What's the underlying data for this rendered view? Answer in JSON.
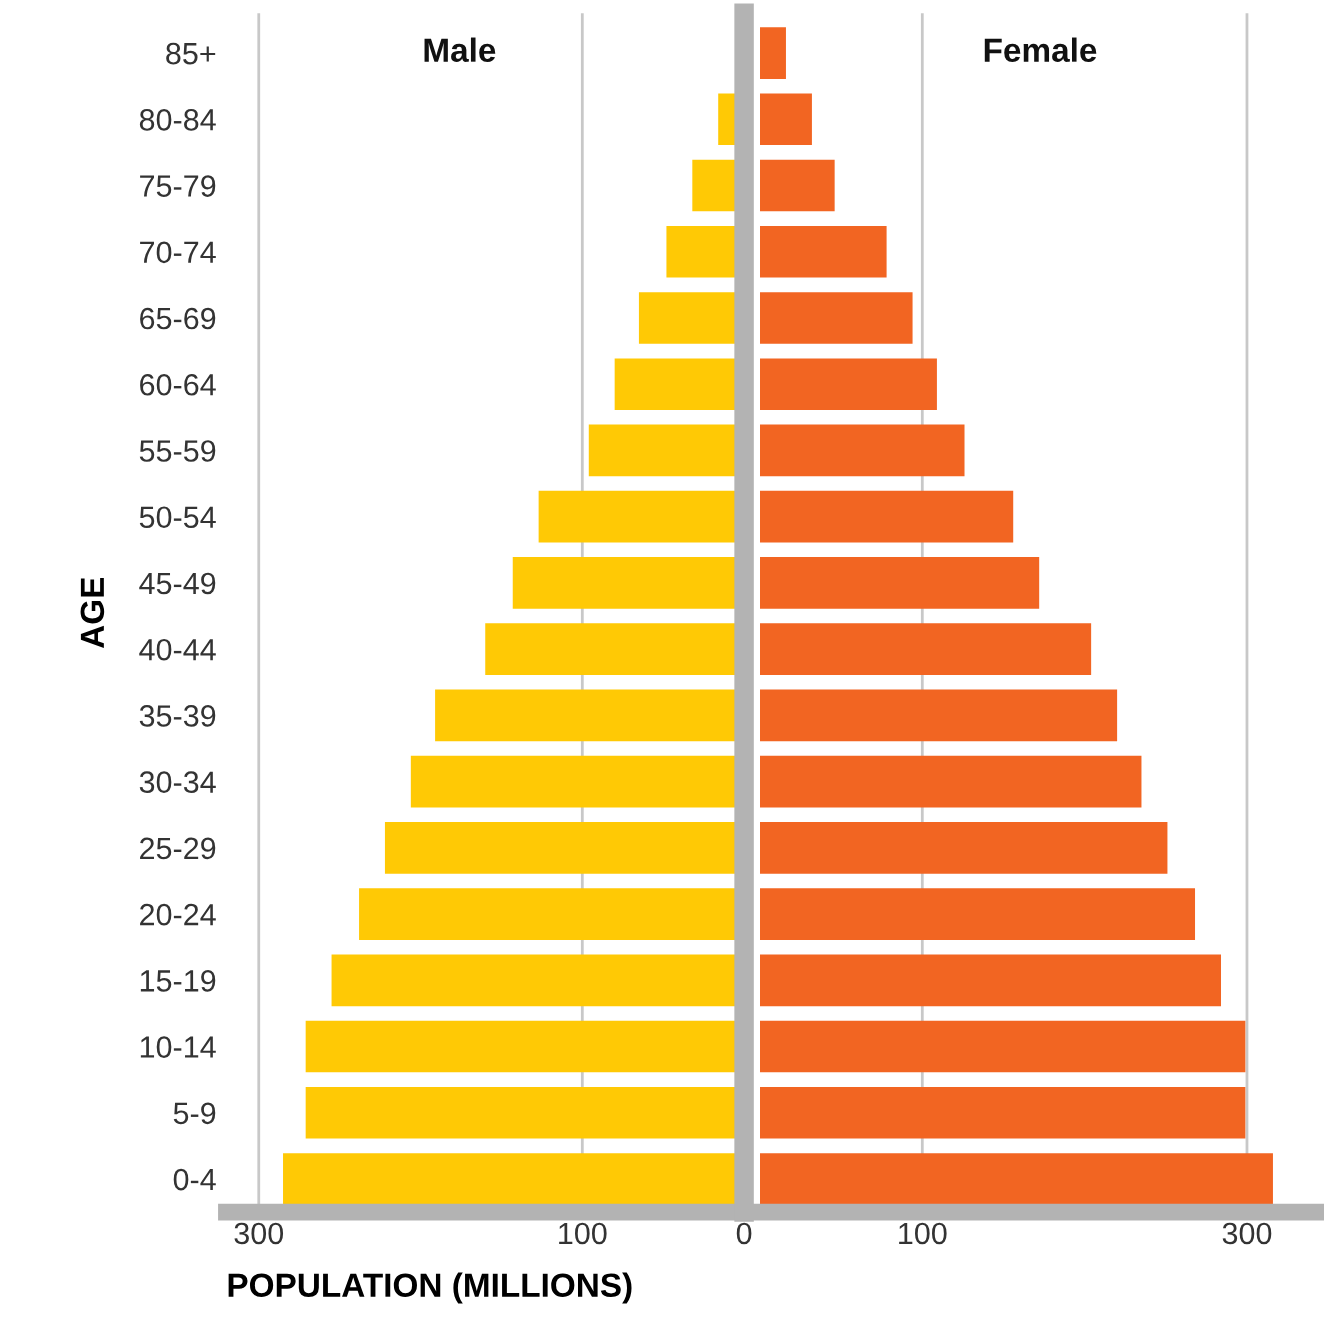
{
  "chart_data": [
    {
      "type": "bar",
      "orientation": "horizontal",
      "xlabel": "POPULATION (MILLIONS)",
      "ylabel": "AGE",
      "categories": [
        "85+",
        "80-84",
        "75-79",
        "70-74",
        "65-69",
        "60-64",
        "55-59",
        "50-54",
        "45-49",
        "40-44",
        "35-39",
        "30-34",
        "25-29",
        "20-24",
        "15-19",
        "10-14",
        "5-9",
        "0-4"
      ],
      "series": [
        {
          "name": "Male",
          "color": "#ffc905",
          "values": [
            0,
            16,
            32,
            48,
            65,
            80,
            96,
            127,
            143,
            160,
            191,
            206,
            222,
            238,
            255,
            271,
            271,
            285
          ]
        }
      ],
      "xlim": [
        320,
        0
      ],
      "xticks": [
        300,
        100,
        0
      ],
      "grid": "x",
      "ref_lines": [
        {
          "axis": "x",
          "value": 0,
          "color": "#b3b3b3"
        }
      ]
    },
    {
      "type": "bar",
      "orientation": "horizontal",
      "categories": [
        null,
        null,
        null,
        null,
        null,
        null,
        null,
        null,
        null,
        null,
        null,
        null,
        null,
        null,
        null,
        null,
        null,
        null
      ],
      "series": [
        {
          "name": "Female",
          "color": "#f26522",
          "values": [
            16,
            32,
            46,
            78,
            94,
            109,
            126,
            156,
            172,
            204,
            220,
            235,
            251,
            268,
            284,
            299,
            299,
            316
          ]
        }
      ],
      "xlim": [
        0,
        345
      ],
      "xticks": [
        100,
        300
      ],
      "grid": "x",
      "tick_labels": "x"
    }
  ]
}
